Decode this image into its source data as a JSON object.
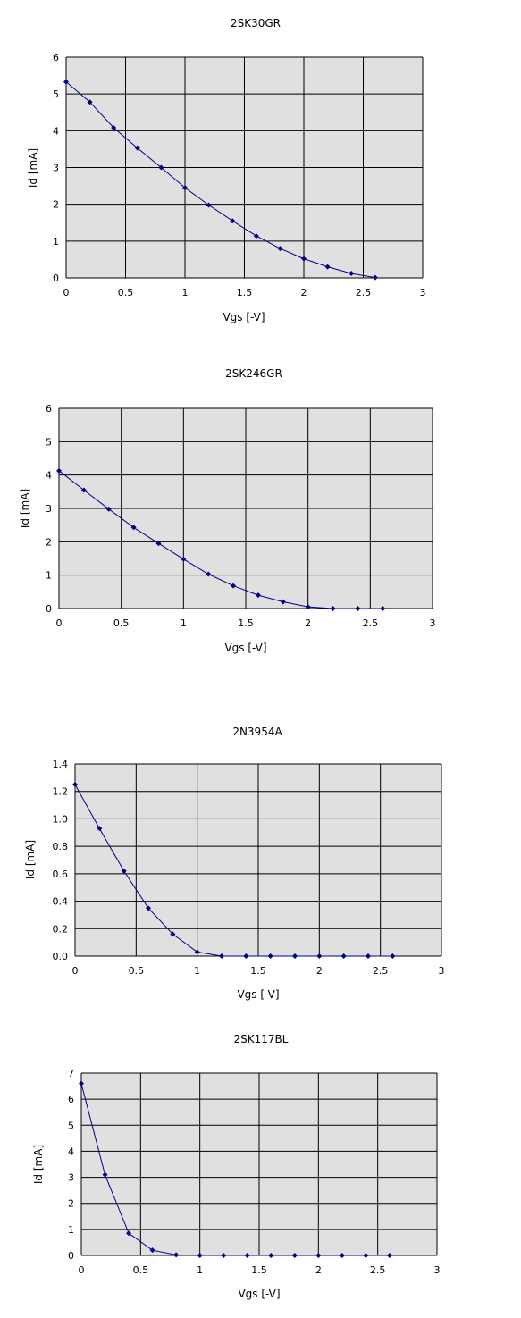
{
  "chart_data": [
    {
      "type": "line",
      "title": "2SK30GR",
      "xlabel": "Vgs [-V]",
      "ylabel": "Id [mA]",
      "xlim": [
        0,
        3
      ],
      "ylim": [
        0,
        6
      ],
      "x_ticks": [
        "0",
        "0.5",
        "1",
        "1.5",
        "2",
        "2.5",
        "3"
      ],
      "y_ticks": [
        "0",
        "1",
        "2",
        "3",
        "4",
        "5",
        "6"
      ],
      "grid": true,
      "plot_background": "#e0e0e0",
      "line_color": "#00008b",
      "series": [
        {
          "x": [
            0,
            0.2,
            0.4,
            0.6,
            0.8,
            1.0,
            1.2,
            1.4,
            1.6,
            1.8,
            2.0,
            2.2,
            2.4,
            2.6
          ],
          "values": [
            5.33,
            4.78,
            4.08,
            3.53,
            3.0,
            2.45,
            1.98,
            1.55,
            1.14,
            0.8,
            0.52,
            0.3,
            0.12,
            0.01
          ]
        }
      ]
    },
    {
      "type": "line",
      "title": "2SK246GR",
      "xlabel": "Vgs [-V]",
      "ylabel": "Id [mA]",
      "xlim": [
        0,
        3
      ],
      "ylim": [
        0,
        6
      ],
      "x_ticks": [
        "0",
        "0.5",
        "1",
        "1.5",
        "2",
        "2.5",
        "3"
      ],
      "y_ticks": [
        "0",
        "1",
        "2",
        "3",
        "4",
        "5",
        "6"
      ],
      "grid": true,
      "plot_background": "#e0e0e0",
      "line_color": "#00008b",
      "series": [
        {
          "x": [
            0,
            0.2,
            0.4,
            0.6,
            0.8,
            1.0,
            1.2,
            1.4,
            1.6,
            1.8,
            2.0,
            2.2,
            2.4,
            2.6
          ],
          "values": [
            4.13,
            3.55,
            2.98,
            2.43,
            1.95,
            1.48,
            1.03,
            0.68,
            0.4,
            0.2,
            0.05,
            0.0,
            0.0,
            0.0
          ]
        }
      ]
    },
    {
      "type": "line",
      "title": "2N3954A",
      "xlabel": "Vgs [-V]",
      "ylabel": "Id [mA]",
      "xlim": [
        0,
        3
      ],
      "ylim": [
        0,
        1.4
      ],
      "x_ticks": [
        "0",
        "0.5",
        "1",
        "1.5",
        "2",
        "2.5",
        "3"
      ],
      "y_ticks": [
        "0.0",
        "0.2",
        "0.4",
        "0.6",
        "0.8",
        "1.0",
        "1.2",
        "1.4"
      ],
      "grid": true,
      "plot_background": "#e0e0e0",
      "line_color": "#00008b",
      "series": [
        {
          "x": [
            0,
            0.2,
            0.4,
            0.6,
            0.8,
            1.0,
            1.2,
            1.4,
            1.6,
            1.8,
            2.0,
            2.2,
            2.4,
            2.6
          ],
          "values": [
            1.25,
            0.93,
            0.62,
            0.35,
            0.16,
            0.03,
            0.0,
            0.0,
            0.0,
            0.0,
            0.0,
            0.0,
            0.0,
            0.0
          ]
        }
      ]
    },
    {
      "type": "line",
      "title": "2SK117BL",
      "xlabel": "Vgs [-V]",
      "ylabel": "Id [mA]",
      "xlim": [
        0,
        3
      ],
      "ylim": [
        0,
        7
      ],
      "x_ticks": [
        "0",
        "0.5",
        "1",
        "1.5",
        "2",
        "2.5",
        "3"
      ],
      "y_ticks": [
        "0",
        "1",
        "2",
        "3",
        "4",
        "5",
        "6",
        "7"
      ],
      "grid": true,
      "plot_background": "#e0e0e0",
      "line_color": "#00008b",
      "series": [
        {
          "x": [
            0,
            0.2,
            0.4,
            0.6,
            0.8,
            1.0,
            1.2,
            1.4,
            1.6,
            1.8,
            2.0,
            2.2,
            2.4,
            2.6
          ],
          "values": [
            6.6,
            3.1,
            0.85,
            0.2,
            0.02,
            0.0,
            0.0,
            0.0,
            0.0,
            0.0,
            0.0,
            0.0,
            0.0,
            0.0
          ]
        }
      ]
    }
  ]
}
